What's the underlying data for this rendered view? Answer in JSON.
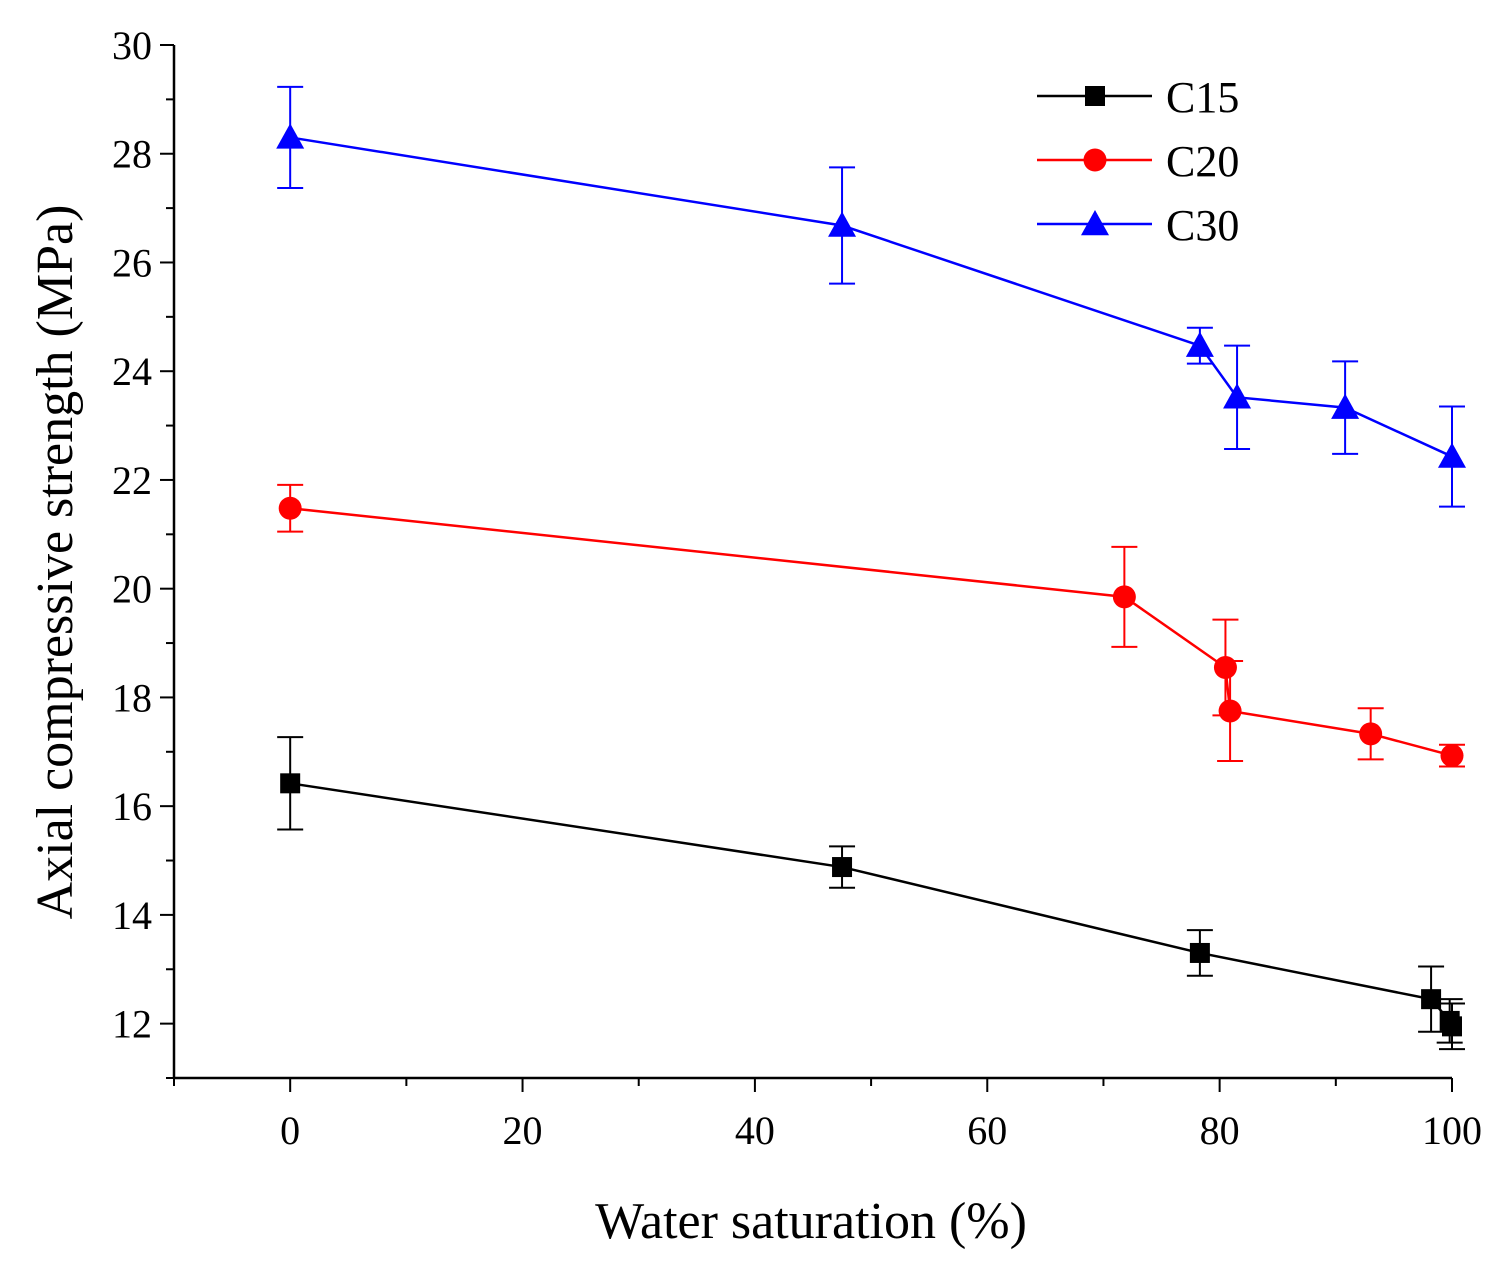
{
  "chart_data": {
    "type": "line",
    "title": "",
    "xlabel": "Water saturation (%)",
    "ylabel": "Axial compressive strength (MPa)",
    "xlim": [
      -10,
      100
    ],
    "ylim": [
      11,
      30
    ],
    "xticks": [
      0,
      20,
      40,
      60,
      80,
      100
    ],
    "yticks": [
      12,
      14,
      16,
      18,
      20,
      22,
      24,
      26,
      28,
      30
    ],
    "legend_position": "top-right",
    "grid": false,
    "series": [
      {
        "name": "C15",
        "color": "#000000",
        "marker": "square",
        "x": [
          0,
          47.5,
          78.3,
          98.2,
          99.8,
          100
        ],
        "y": [
          16.42,
          14.88,
          13.3,
          12.45,
          12.05,
          11.95
        ],
        "err": [
          0.85,
          0.38,
          0.42,
          0.6,
          0.4,
          0.42
        ]
      },
      {
        "name": "C20",
        "color": "#ff0000",
        "marker": "circle",
        "x": [
          0,
          71.8,
          80.5,
          80.9,
          93.0,
          100
        ],
        "y": [
          21.48,
          19.85,
          18.55,
          17.75,
          17.33,
          16.93
        ],
        "err": [
          0.43,
          0.92,
          0.88,
          0.92,
          0.47,
          0.2
        ]
      },
      {
        "name": "C30",
        "color": "#0000ff",
        "marker": "triangle",
        "x": [
          0,
          47.5,
          78.3,
          81.5,
          90.8,
          100
        ],
        "y": [
          28.3,
          26.68,
          24.47,
          23.52,
          23.33,
          22.43
        ],
        "err": [
          0.93,
          1.07,
          0.33,
          0.95,
          0.85,
          0.92
        ]
      }
    ]
  }
}
